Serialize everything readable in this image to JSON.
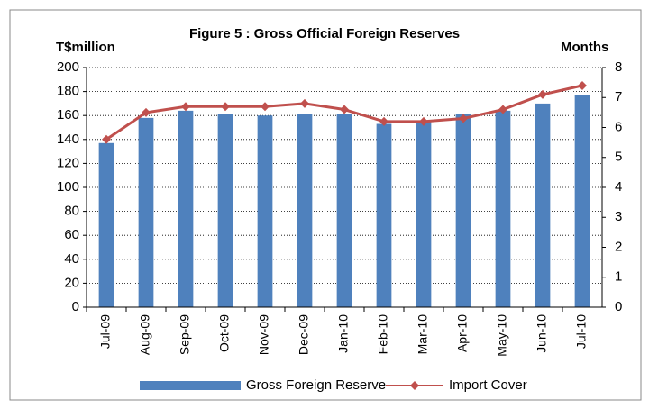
{
  "chart_data": {
    "type": "bar_line",
    "title": "Figure 5 : Gross Official Foreign Reserves",
    "ylabel": "T$million",
    "y2label": "Months",
    "categories": [
      "Jul-09",
      "Aug-09",
      "Sep-09",
      "Oct-09",
      "Nov-09",
      "Dec-09",
      "Jan-10",
      "Feb-10",
      "Mar-10",
      "Apr-10",
      "May-10",
      "Jun-10",
      "Jul-10"
    ],
    "series": [
      {
        "name": "Gross Foreign Reserve",
        "type": "bar",
        "color": "#4f81bd",
        "values": [
          137,
          158,
          164,
          161,
          160,
          161,
          161,
          153,
          156,
          161,
          164,
          170,
          177
        ]
      },
      {
        "name": "Import Cover",
        "type": "line",
        "axis": "y2",
        "color": "#c0504d",
        "values": [
          5.6,
          6.5,
          6.7,
          6.7,
          6.7,
          6.8,
          6.6,
          6.2,
          6.2,
          6.3,
          6.6,
          7.1,
          7.4
        ]
      }
    ],
    "ylim": [
      0,
      200
    ],
    "yticks": [
      0,
      20,
      40,
      60,
      80,
      100,
      120,
      140,
      160,
      180,
      200
    ],
    "y2lim": [
      0,
      8
    ],
    "y2ticks": [
      0,
      1,
      2,
      3,
      4,
      5,
      6,
      7,
      8
    ],
    "grid": true,
    "legend": "bottom"
  }
}
